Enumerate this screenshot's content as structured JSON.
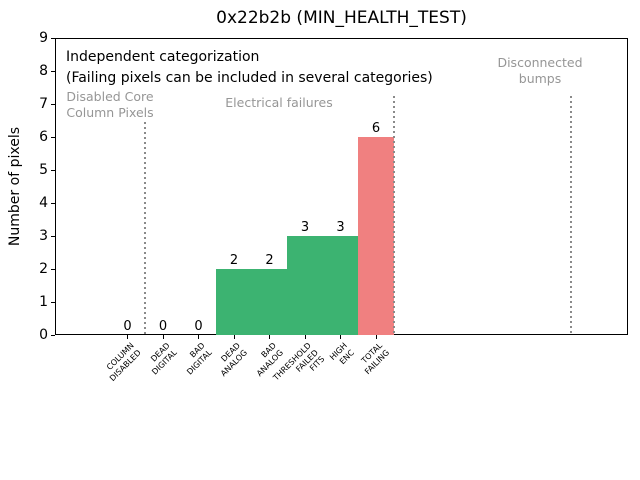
{
  "chart_data": {
    "type": "bar",
    "title": "0x22b2b (MIN_HEALTH_TEST)",
    "ylabel": "Number of pixels",
    "xlabel": "",
    "ylim": [
      0,
      9
    ],
    "yticks": [
      0,
      1,
      2,
      3,
      4,
      5,
      6,
      7,
      8,
      9
    ],
    "grid": false,
    "legend": null,
    "categories": [
      "COLUMN\nDISABLED",
      "DEAD\nDIGITAL",
      "BAD\nDIGITAL",
      "DEAD\nANALOG",
      "BAD\nANALOG",
      "THRESHOLD\nFAILED\nFITS",
      "HIGH\nENC",
      "TOTAL\nFAILING"
    ],
    "values": [
      0,
      0,
      0,
      2,
      2,
      3,
      3,
      6
    ],
    "bar_value_labels": [
      "0",
      "0",
      "0",
      "2",
      "2",
      "3",
      "3",
      "6"
    ],
    "bar_colors": [
      "#3cb371",
      "#3cb371",
      "#3cb371",
      "#3cb371",
      "#3cb371",
      "#3cb371",
      "#3cb371",
      "#f08080"
    ],
    "annotations": [
      {
        "text": "Independent categorization",
        "color": "#000000"
      },
      {
        "text": "(Failing pixels can be included in several categories)",
        "color": "#000000"
      }
    ],
    "region_labels": [
      {
        "text": "Disabled Core\nColumn Pixels"
      },
      {
        "text": "Electrical failures"
      },
      {
        "text": "Disconnected\nbumps"
      }
    ],
    "separator_positions_category_units": [
      0.5,
      7.5,
      12.5
    ],
    "colors": {
      "bar_pass": "#3cb371",
      "bar_fail": "#f08080",
      "muted_text": "#969696",
      "separator": "#8a8a8a",
      "axis": "#000000",
      "background": "#ffffff"
    }
  }
}
